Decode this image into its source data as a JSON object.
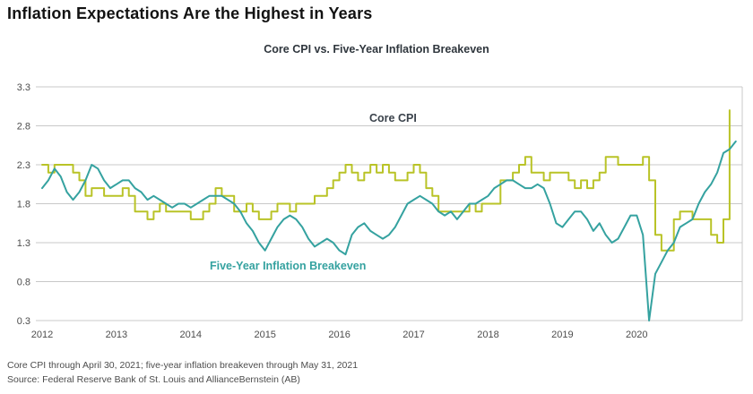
{
  "header": {
    "title": "Inflation Expectations Are the Highest in Years"
  },
  "footnotes": {
    "line1": "Core CPI through April 30, 2021; five-year inflation breakeven through May 31, 2021",
    "line2": "Source: Federal Reserve Bank of St. Louis and AllianceBernstein (AB)"
  },
  "chart_data": {
    "type": "line",
    "title": "Core CPI vs. Five-Year Inflation Breakeven",
    "xlabel": "",
    "ylabel": "",
    "xlim": [
      2012,
      2021.42
    ],
    "ylim": [
      0.3,
      3.3
    ],
    "xticks": [
      2012,
      2013,
      2014,
      2015,
      2016,
      2017,
      2018,
      2019,
      2020
    ],
    "yticks": [
      0.3,
      0.8,
      1.3,
      1.8,
      2.3,
      2.8,
      3.3
    ],
    "grid": "horizontal",
    "grid_color": "#c8c8c8",
    "tick_label_color": "#4d4d4d",
    "legend_position": "inline-labels",
    "series": [
      {
        "id": "core-cpi",
        "name": "Core CPI",
        "color": "#b9c327",
        "interpolation": "step-after",
        "cadence": "monthly",
        "x_start": 2012.0,
        "values": [
          2.3,
          2.2,
          2.3,
          2.3,
          2.3,
          2.2,
          2.1,
          1.9,
          2.0,
          2.0,
          1.9,
          1.9,
          1.9,
          2.0,
          1.9,
          1.7,
          1.7,
          1.6,
          1.7,
          1.8,
          1.7,
          1.7,
          1.7,
          1.7,
          1.6,
          1.6,
          1.7,
          1.8,
          2.0,
          1.9,
          1.9,
          1.7,
          1.7,
          1.8,
          1.7,
          1.6,
          1.6,
          1.7,
          1.8,
          1.8,
          1.7,
          1.8,
          1.8,
          1.8,
          1.9,
          1.9,
          2.0,
          2.1,
          2.2,
          2.3,
          2.2,
          2.1,
          2.2,
          2.3,
          2.2,
          2.3,
          2.2,
          2.1,
          2.1,
          2.2,
          2.3,
          2.2,
          2.0,
          1.9,
          1.7,
          1.7,
          1.7,
          1.7,
          1.7,
          1.8,
          1.7,
          1.8,
          1.8,
          1.8,
          2.1,
          2.1,
          2.2,
          2.3,
          2.4,
          2.2,
          2.2,
          2.1,
          2.2,
          2.2,
          2.2,
          2.1,
          2.0,
          2.1,
          2.0,
          2.1,
          2.2,
          2.4,
          2.4,
          2.3,
          2.3,
          2.3,
          2.3,
          2.4,
          2.1,
          1.4,
          1.2,
          1.2,
          1.6,
          1.7,
          1.7,
          1.6,
          1.6,
          1.6,
          1.4,
          1.3,
          1.6,
          3.0
        ]
      },
      {
        "id": "breakeven",
        "name": "Five-Year Inflation Breakeven",
        "color": "#35a2a0",
        "interpolation": "linear",
        "cadence": "monthly",
        "x_start": 2012.0,
        "values": [
          2.0,
          2.1,
          2.25,
          2.15,
          1.95,
          1.85,
          1.95,
          2.1,
          2.3,
          2.25,
          2.1,
          2.0,
          2.05,
          2.1,
          2.1,
          2.0,
          1.95,
          1.85,
          1.9,
          1.85,
          1.8,
          1.75,
          1.8,
          1.8,
          1.75,
          1.8,
          1.85,
          1.9,
          1.9,
          1.9,
          1.85,
          1.8,
          1.7,
          1.55,
          1.45,
          1.3,
          1.2,
          1.35,
          1.5,
          1.6,
          1.65,
          1.6,
          1.5,
          1.35,
          1.25,
          1.3,
          1.35,
          1.3,
          1.2,
          1.15,
          1.4,
          1.5,
          1.55,
          1.45,
          1.4,
          1.35,
          1.4,
          1.5,
          1.65,
          1.8,
          1.85,
          1.9,
          1.85,
          1.8,
          1.7,
          1.65,
          1.7,
          1.6,
          1.7,
          1.8,
          1.8,
          1.85,
          1.9,
          2.0,
          2.05,
          2.1,
          2.1,
          2.05,
          2.0,
          2.0,
          2.05,
          2.0,
          1.8,
          1.55,
          1.5,
          1.6,
          1.7,
          1.7,
          1.6,
          1.45,
          1.55,
          1.4,
          1.3,
          1.35,
          1.5,
          1.65,
          1.65,
          1.4,
          0.3,
          0.9,
          1.05,
          1.2,
          1.3,
          1.5,
          1.55,
          1.6,
          1.8,
          1.95,
          2.05,
          2.2,
          2.45,
          2.5,
          2.6
        ]
      }
    ]
  }
}
